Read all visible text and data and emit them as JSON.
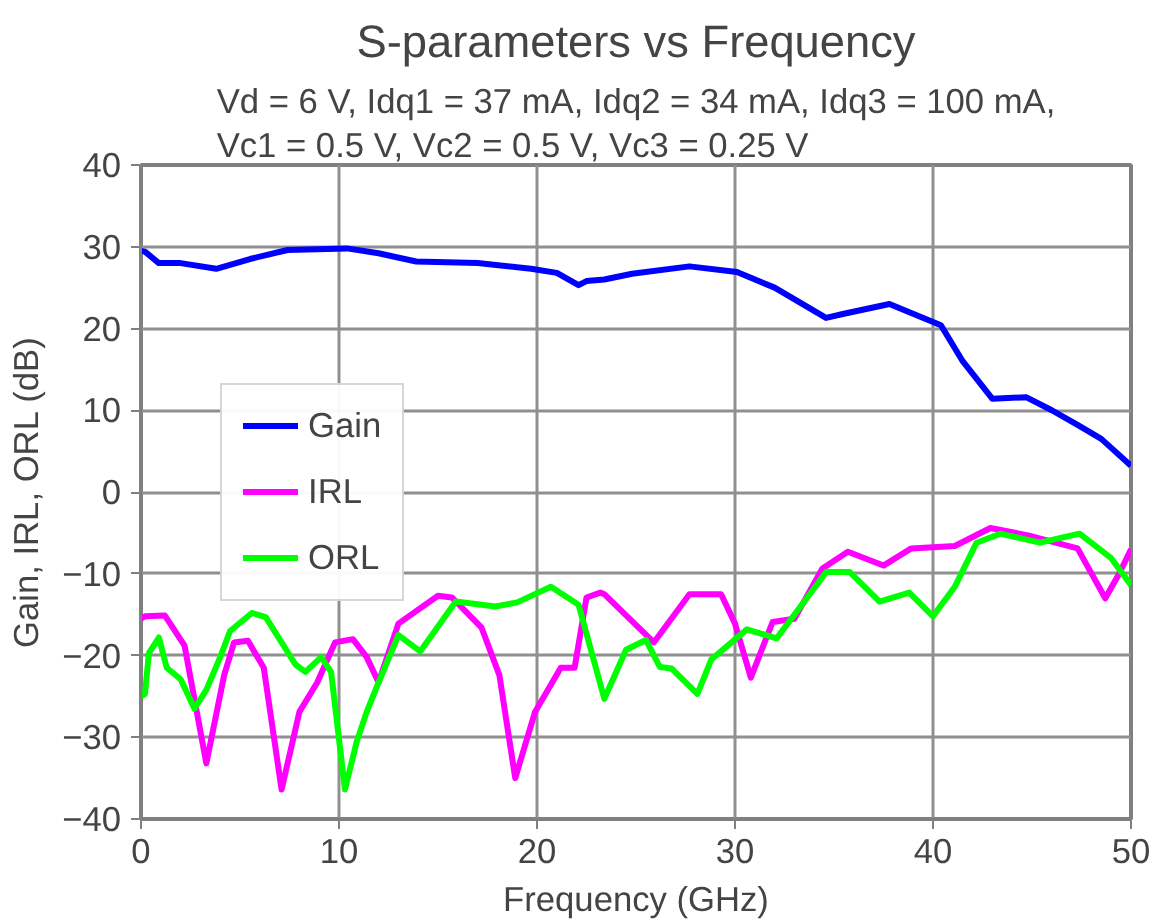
{
  "chart_data": {
    "type": "line",
    "title": "S-parameters vs Frequency",
    "subtitle": "Vd = 6 V, Idq1 = 37 mA, Idq2 = 34 mA, Idq3 = 100 mA, Vc1 = 0.5 V, Vc2 = 0.5 V, Vc3 = 0.25 V",
    "xlabel": "Frequency (GHz)",
    "ylabel": "Gain, IRL, ORL (dB)",
    "xlim": [
      0,
      50
    ],
    "ylim": [
      -40,
      40
    ],
    "xticks": [
      0,
      10,
      20,
      30,
      40,
      50
    ],
    "yticks": [
      -40,
      -30,
      -20,
      -10,
      0,
      10,
      20,
      30,
      40
    ],
    "grid": true,
    "legend": "left",
    "line_style": "solid",
    "marker": "none",
    "series": [
      {
        "name": "Gain",
        "color": "#0000ff",
        "x": [
          0,
          0.2,
          0.9,
          2,
          3.8,
          5.5,
          7.4,
          10.4,
          12,
          13.9,
          17,
          19.7,
          21,
          22.1,
          22.5,
          23.4,
          24.8,
          27.7,
          30.1,
          32,
          34.6,
          35.5,
          37.8,
          40.4,
          41.5,
          43,
          44.7,
          46,
          47.3,
          48.5,
          50
        ],
        "values": [
          29.5,
          29.4,
          28.0,
          28.0,
          27.3,
          28.5,
          29.6,
          29.8,
          29.2,
          28.2,
          28,
          27.3,
          26.8,
          25.3,
          25.8,
          26.0,
          26.7,
          27.6,
          26.9,
          25,
          21.3,
          21.8,
          23,
          20.4,
          16,
          11.4,
          11.6,
          10,
          8.2,
          6.5,
          3.2
        ]
      },
      {
        "name": "IRL",
        "color": "#ff00ff",
        "x": [
          0,
          0.2,
          1.2,
          2.2,
          3.3,
          4.2,
          4.7,
          5.4,
          6.2,
          7.1,
          8.0,
          8.9,
          9.8,
          10.7,
          11.4,
          12.0,
          13.0,
          15.0,
          15.7,
          17.2,
          18.1,
          18.9,
          19.9,
          21.2,
          21.9,
          22.5,
          23.2,
          23.4,
          25.9,
          27.7,
          29.3,
          30.0,
          30.8,
          31.9,
          33.0,
          34.4,
          35.7,
          37.5,
          38.9,
          41.1,
          42.9,
          44.8,
          47.3,
          48.7,
          49.4,
          50
        ],
        "values": [
          -15.5,
          -15.2,
          -15.1,
          -18.8,
          -33.2,
          -22.4,
          -18.4,
          -18.2,
          -21.5,
          -36.4,
          -26.9,
          -23.3,
          -18.4,
          -18.0,
          -20.2,
          -23.3,
          -16.1,
          -12.7,
          -12.9,
          -16.6,
          -22.4,
          -35.0,
          -26.9,
          -21.5,
          -21.5,
          -12.9,
          -12.3,
          -12.5,
          -18.4,
          -12.5,
          -12.5,
          -16.1,
          -22.7,
          -15.9,
          -15.5,
          -9.4,
          -7.3,
          -9.0,
          -6.9,
          -6.6,
          -4.4,
          -5.3,
          -6.9,
          -13.0,
          -10,
          -7.0
        ]
      },
      {
        "name": "ORL",
        "color": "#00ff00",
        "x": [
          0,
          0.2,
          0.4,
          0.9,
          1.3,
          2.0,
          2.7,
          3.3,
          4.0,
          4.5,
          5.6,
          6.3,
          7.8,
          8.3,
          9.1,
          9.6,
          10.3,
          10.9,
          11.4,
          12.0,
          13.0,
          14.1,
          15.9,
          17.9,
          19.0,
          20.7,
          22.1,
          23.4,
          24.5,
          25.5,
          26.2,
          26.8,
          28.1,
          28.8,
          30.6,
          32.1,
          33.5,
          34.6,
          35.8,
          37.3,
          38.8,
          40.0,
          41.1,
          42.2,
          43.4,
          45.4,
          47.4,
          49.0,
          50
        ],
        "values": [
          -25,
          -24.7,
          -19.7,
          -17.8,
          -21.5,
          -22.9,
          -26.5,
          -24.2,
          -20.2,
          -17.0,
          -14.8,
          -15.3,
          -21.1,
          -22.0,
          -20.2,
          -22.0,
          -36.4,
          -30.5,
          -26.9,
          -23.3,
          -17.5,
          -19.5,
          -13.4,
          -14.0,
          -13.5,
          -11.6,
          -13.8,
          -25.3,
          -19.3,
          -18.1,
          -21.4,
          -21.6,
          -24.7,
          -20.5,
          -16.8,
          -17.9,
          -13.4,
          -9.8,
          -9.8,
          -13.4,
          -12.3,
          -15.2,
          -11.6,
          -6.2,
          -5.1,
          -6.2,
          -5.1,
          -8.1,
          -11.4
        ]
      }
    ]
  }
}
